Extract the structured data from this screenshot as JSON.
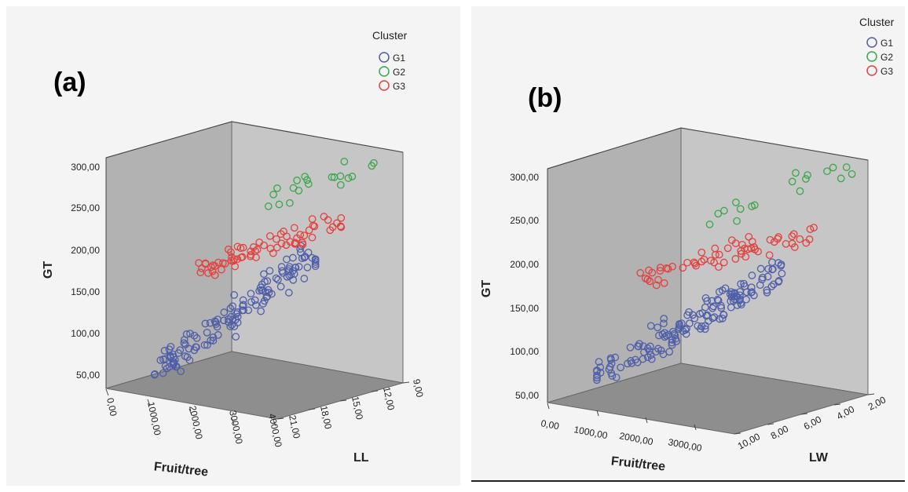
{
  "chart_data": [
    {
      "type": "scatter",
      "panel_label": "(a)",
      "zlabel": "GT",
      "xlabel": "Fruit/tree",
      "ylabel": "LL",
      "z_ticks": [
        "50,00",
        "100,00",
        "150,00",
        "200,00",
        "250,00",
        "300,00"
      ],
      "x_ticks": [
        "0,00",
        "1000,00",
        "2000,00",
        "3000,00",
        "4000,00"
      ],
      "y_ticks": [
        "21,00",
        "18,00",
        "15,00",
        "12,00",
        "9,00"
      ],
      "zlim": [
        50,
        300
      ],
      "xlim": [
        0,
        4000
      ],
      "ylim": [
        21,
        9
      ],
      "legend": {
        "title": "Cluster",
        "placement": "top-right"
      },
      "series": [
        {
          "name": "G1",
          "color": "#4f5ea8",
          "n": 140,
          "z_range": [
            60,
            178
          ],
          "x_range": [
            400,
            2200
          ],
          "y_range": [
            18,
            10
          ]
        },
        {
          "name": "G2",
          "color": "#3aa64a",
          "n": 20,
          "z_range": [
            220,
            288
          ],
          "x_range": [
            1300,
            3400
          ],
          "y_range": [
            13,
            9
          ]
        },
        {
          "name": "G3",
          "color": "#e3403e",
          "n": 70,
          "z_range": [
            168,
            218
          ],
          "x_range": [
            900,
            2800
          ],
          "y_range": [
            16,
            10
          ]
        }
      ]
    },
    {
      "type": "scatter",
      "panel_label": "(b)",
      "zlabel": "GT",
      "xlabel": "Fruit/tree",
      "ylabel": "LW",
      "z_ticks": [
        "50,00",
        "100,00",
        "150,00",
        "200,00",
        "250,00",
        "300,00"
      ],
      "x_ticks": [
        "0,00",
        "1000,00",
        "2000,00",
        "3000,00"
      ],
      "y_ticks": [
        "10,00",
        "8,00",
        "6,00",
        "4,00",
        "2,00"
      ],
      "zlim": [
        50,
        300
      ],
      "xlim": [
        0,
        3500
      ],
      "ylim": [
        10,
        2
      ],
      "legend": {
        "title": "Cluster",
        "placement": "top-right"
      },
      "series": [
        {
          "name": "G1",
          "color": "#4f5ea8",
          "n": 150,
          "z_range": [
            68,
            178
          ],
          "x_range": [
            300,
            2200
          ],
          "y_range": [
            8,
            3
          ]
        },
        {
          "name": "G2",
          "color": "#3aa64a",
          "n": 18,
          "z_range": [
            225,
            292
          ],
          "x_range": [
            1300,
            3200
          ],
          "y_range": [
            5,
            2
          ]
        },
        {
          "name": "G3",
          "color": "#e3403e",
          "n": 60,
          "z_range": [
            175,
            222
          ],
          "x_range": [
            800,
            2800
          ],
          "y_range": [
            7,
            3
          ]
        }
      ]
    }
  ]
}
